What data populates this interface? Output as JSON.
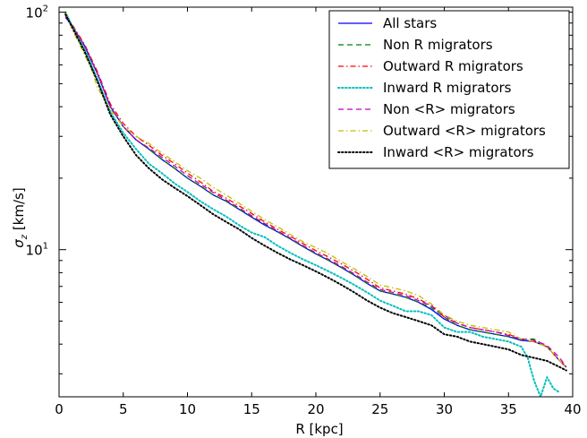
{
  "chart_data": {
    "type": "line",
    "xlabel": "R [kpc]",
    "ylabel": "σz [km/s]",
    "ylabel_main": "σ",
    "ylabel_sub": "z",
    "ylabel_unit": " [km/s]",
    "xlim": [
      0,
      40
    ],
    "ylim": [
      2.4,
      105
    ],
    "yscale": "log",
    "grid": false,
    "legend_position": "top-right",
    "x_ticks": [
      0,
      5,
      10,
      15,
      20,
      25,
      30,
      35,
      40
    ],
    "x_tick_labels": [
      "0",
      "5",
      "10",
      "15",
      "20",
      "25",
      "30",
      "35",
      "40"
    ],
    "y_major_ticks": [
      10,
      100
    ],
    "y_major_tick_base": "10",
    "y_major_tick_exponents": [
      "1",
      "2"
    ],
    "series": [
      {
        "name": "All stars",
        "color": "#0000ff",
        "dash": "solid",
        "points": [
          [
            0.5,
            95
          ],
          [
            1,
            88
          ],
          [
            2,
            72
          ],
          [
            3,
            55
          ],
          [
            4,
            40
          ],
          [
            5,
            33
          ],
          [
            6,
            29
          ],
          [
            7,
            26.5
          ],
          [
            8,
            24
          ],
          [
            9,
            22
          ],
          [
            10,
            20
          ],
          [
            11,
            18.5
          ],
          [
            12,
            17
          ],
          [
            13,
            16
          ],
          [
            14,
            14.8
          ],
          [
            15,
            13.7
          ],
          [
            16,
            12.7
          ],
          [
            17,
            11.9
          ],
          [
            18,
            11.1
          ],
          [
            19,
            10.3
          ],
          [
            20,
            9.6
          ],
          [
            21,
            9.0
          ],
          [
            22,
            8.4
          ],
          [
            23,
            7.8
          ],
          [
            24,
            7.2
          ],
          [
            25,
            6.7
          ],
          [
            26,
            6.5
          ],
          [
            27,
            6.3
          ],
          [
            28,
            6.0
          ],
          [
            29,
            5.6
          ],
          [
            30,
            5.1
          ],
          [
            31,
            4.8
          ],
          [
            32,
            4.6
          ],
          [
            33,
            4.5
          ],
          [
            34,
            4.4
          ],
          [
            35,
            4.3
          ],
          [
            36,
            4.15
          ],
          [
            37,
            4.1
          ],
          [
            38,
            3.9
          ],
          [
            39,
            3.4
          ],
          [
            39.5,
            3.2
          ]
        ]
      },
      {
        "name": "Non R migrators",
        "color": "#008000",
        "dash": "dashed",
        "points": [
          [
            0.5,
            96
          ],
          [
            1,
            88
          ],
          [
            2,
            72
          ],
          [
            3,
            55
          ],
          [
            4,
            40
          ],
          [
            5,
            33
          ],
          [
            6,
            29
          ],
          [
            7,
            26.5
          ],
          [
            8,
            24
          ],
          [
            9,
            22
          ],
          [
            10,
            20
          ],
          [
            11,
            18.6
          ],
          [
            12,
            17
          ],
          [
            13,
            16
          ],
          [
            14,
            14.8
          ],
          [
            15,
            13.8
          ],
          [
            16,
            12.8
          ],
          [
            17,
            11.9
          ],
          [
            18,
            11.1
          ],
          [
            19,
            10.3
          ],
          [
            20,
            9.6
          ],
          [
            21,
            9.0
          ],
          [
            22,
            8.4
          ],
          [
            23,
            7.8
          ],
          [
            24,
            7.2
          ],
          [
            25,
            6.7
          ],
          [
            26,
            6.5
          ],
          [
            27,
            6.3
          ],
          [
            28,
            6.0
          ],
          [
            29,
            5.7
          ],
          [
            30,
            5.2
          ],
          [
            31,
            4.8
          ],
          [
            32,
            4.6
          ],
          [
            33,
            4.5
          ],
          [
            34,
            4.4
          ],
          [
            35,
            4.3
          ],
          [
            36,
            4.2
          ],
          [
            37,
            4.2
          ],
          [
            38,
            3.9
          ],
          [
            39,
            3.4
          ],
          [
            39.5,
            3.2
          ]
        ]
      },
      {
        "name": "Outward R migrators",
        "color": "#ff0000",
        "dash": "dashdot",
        "points": [
          [
            0.5,
            97
          ],
          [
            1,
            89
          ],
          [
            2,
            73
          ],
          [
            3,
            56
          ],
          [
            4,
            41
          ],
          [
            5,
            34
          ],
          [
            6,
            30
          ],
          [
            7,
            27.5
          ],
          [
            8,
            25
          ],
          [
            9,
            23
          ],
          [
            10,
            21
          ],
          [
            11,
            19.3
          ],
          [
            12,
            17.6
          ],
          [
            13,
            16.5
          ],
          [
            14,
            15.3
          ],
          [
            15,
            14.2
          ],
          [
            16,
            13.1
          ],
          [
            17,
            12.2
          ],
          [
            18,
            11.4
          ],
          [
            19,
            10.6
          ],
          [
            20,
            9.9
          ],
          [
            21,
            9.3
          ],
          [
            22,
            8.7
          ],
          [
            23,
            8.1
          ],
          [
            24,
            7.5
          ],
          [
            25,
            6.9
          ],
          [
            26,
            6.7
          ],
          [
            27,
            6.5
          ],
          [
            28,
            6.2
          ],
          [
            29,
            5.8
          ],
          [
            30,
            5.2
          ],
          [
            31,
            4.9
          ],
          [
            32,
            4.7
          ],
          [
            33,
            4.6
          ],
          [
            34,
            4.5
          ],
          [
            35,
            4.4
          ],
          [
            36,
            4.2
          ],
          [
            37,
            4.1
          ],
          [
            38,
            3.9
          ],
          [
            39,
            3.4
          ],
          [
            39.5,
            3.2
          ]
        ]
      },
      {
        "name": "Inward R migrators",
        "color": "#00bfbf",
        "dash": "dotted",
        "points": [
          [
            0.5,
            100
          ],
          [
            1,
            88
          ],
          [
            2,
            70
          ],
          [
            3,
            52
          ],
          [
            4,
            38
          ],
          [
            5,
            31
          ],
          [
            6,
            26.5
          ],
          [
            7,
            23
          ],
          [
            8,
            21
          ],
          [
            9,
            19
          ],
          [
            10,
            17.5
          ],
          [
            11,
            16
          ],
          [
            12,
            14.8
          ],
          [
            13,
            13.8
          ],
          [
            14,
            12.7
          ],
          [
            15,
            11.8
          ],
          [
            16,
            11.3
          ],
          [
            17,
            10.4
          ],
          [
            18,
            9.7
          ],
          [
            19,
            9.1
          ],
          [
            20,
            8.6
          ],
          [
            21,
            8.1
          ],
          [
            22,
            7.6
          ],
          [
            23,
            7.1
          ],
          [
            24,
            6.6
          ],
          [
            25,
            6.1
          ],
          [
            26,
            5.8
          ],
          [
            27,
            5.5
          ],
          [
            28,
            5.5
          ],
          [
            29,
            5.3
          ],
          [
            30,
            4.7
          ],
          [
            31,
            4.5
          ],
          [
            32,
            4.5
          ],
          [
            33,
            4.3
          ],
          [
            34,
            4.2
          ],
          [
            35,
            4.1
          ],
          [
            36,
            3.9
          ],
          [
            36.5,
            3.5
          ],
          [
            37,
            2.8
          ],
          [
            37.5,
            2.4
          ],
          [
            38,
            2.9
          ],
          [
            38.5,
            2.6
          ],
          [
            39,
            2.5
          ]
        ]
      },
      {
        "name": "Non <R> migrators",
        "color": "#bf00bf",
        "dash": "dashed",
        "points": [
          [
            0.5,
            96
          ],
          [
            1,
            88
          ],
          [
            2,
            72
          ],
          [
            3,
            55
          ],
          [
            4,
            40
          ],
          [
            5,
            33
          ],
          [
            6,
            29
          ],
          [
            7,
            26.8
          ],
          [
            8,
            24.5
          ],
          [
            9,
            22.5
          ],
          [
            10,
            20.5
          ],
          [
            11,
            18.9
          ],
          [
            12,
            17.4
          ],
          [
            13,
            16.2
          ],
          [
            14,
            15
          ],
          [
            15,
            13.9
          ],
          [
            16,
            12.9
          ],
          [
            17,
            12
          ],
          [
            18,
            11.2
          ],
          [
            19,
            10.4
          ],
          [
            20,
            9.7
          ],
          [
            21,
            9.1
          ],
          [
            22,
            8.5
          ],
          [
            23,
            7.9
          ],
          [
            24,
            7.3
          ],
          [
            25,
            6.8
          ],
          [
            26,
            6.6
          ],
          [
            27,
            6.4
          ],
          [
            28,
            6.1
          ],
          [
            29,
            5.8
          ],
          [
            30,
            5.3
          ],
          [
            31,
            4.9
          ],
          [
            32,
            4.7
          ],
          [
            33,
            4.6
          ],
          [
            34,
            4.5
          ],
          [
            35,
            4.35
          ],
          [
            36,
            4.2
          ],
          [
            37,
            4.15
          ],
          [
            38,
            3.95
          ],
          [
            39,
            3.5
          ],
          [
            39.5,
            3.2
          ]
        ]
      },
      {
        "name": "Outward <R> migrators",
        "color": "#bfbf00",
        "dash": "dashdot",
        "points": [
          [
            0.5,
            100
          ],
          [
            1,
            85
          ],
          [
            2,
            66
          ],
          [
            2.5,
            58
          ],
          [
            3,
            48
          ],
          [
            4,
            39
          ],
          [
            5,
            33
          ],
          [
            6,
            30
          ],
          [
            7,
            28
          ],
          [
            8,
            25.5
          ],
          [
            9,
            23.5
          ],
          [
            10,
            21.5
          ],
          [
            11,
            20
          ],
          [
            12,
            18.3
          ],
          [
            13,
            17
          ],
          [
            14,
            15.7
          ],
          [
            15,
            14.5
          ],
          [
            16,
            13.4
          ],
          [
            17,
            12.5
          ],
          [
            18,
            11.6
          ],
          [
            19,
            10.8
          ],
          [
            20,
            10.2
          ],
          [
            21,
            9.6
          ],
          [
            22,
            8.9
          ],
          [
            23,
            8.3
          ],
          [
            24,
            7.7
          ],
          [
            25,
            7.1
          ],
          [
            26,
            6.9
          ],
          [
            27,
            6.7
          ],
          [
            28,
            6.4
          ],
          [
            29,
            5.9
          ],
          [
            30,
            5.3
          ],
          [
            31,
            5
          ],
          [
            32,
            4.8
          ],
          [
            33,
            4.7
          ],
          [
            34,
            4.6
          ],
          [
            35,
            4.5
          ],
          [
            36,
            4.2
          ],
          [
            37,
            4.1
          ],
          [
            38,
            3.9
          ],
          [
            39,
            3.4
          ],
          [
            39.5,
            3.2
          ]
        ]
      },
      {
        "name": "Inward <R> migrators",
        "color": "#000000",
        "dash": "dotted",
        "points": [
          [
            0.5,
            98
          ],
          [
            1,
            87
          ],
          [
            2,
            68
          ],
          [
            3,
            51
          ],
          [
            4,
            37
          ],
          [
            5,
            30
          ],
          [
            6,
            25
          ],
          [
            7,
            22
          ],
          [
            8,
            19.8
          ],
          [
            9,
            18.2
          ],
          [
            10,
            16.8
          ],
          [
            11,
            15.4
          ],
          [
            12,
            14.1
          ],
          [
            13,
            13.1
          ],
          [
            14,
            12.2
          ],
          [
            15,
            11.2
          ],
          [
            16,
            10.4
          ],
          [
            17,
            9.7
          ],
          [
            18,
            9.1
          ],
          [
            19,
            8.6
          ],
          [
            20,
            8.1
          ],
          [
            21,
            7.6
          ],
          [
            22,
            7.1
          ],
          [
            23,
            6.6
          ],
          [
            24,
            6.1
          ],
          [
            25,
            5.7
          ],
          [
            26,
            5.4
          ],
          [
            27,
            5.2
          ],
          [
            28,
            5.0
          ],
          [
            29,
            4.8
          ],
          [
            30,
            4.4
          ],
          [
            31,
            4.3
          ],
          [
            32,
            4.1
          ],
          [
            33,
            4.0
          ],
          [
            34,
            3.9
          ],
          [
            35,
            3.8
          ],
          [
            36,
            3.6
          ],
          [
            37,
            3.5
          ],
          [
            38,
            3.4
          ],
          [
            39,
            3.2
          ],
          [
            39.5,
            3.1
          ]
        ]
      }
    ]
  }
}
